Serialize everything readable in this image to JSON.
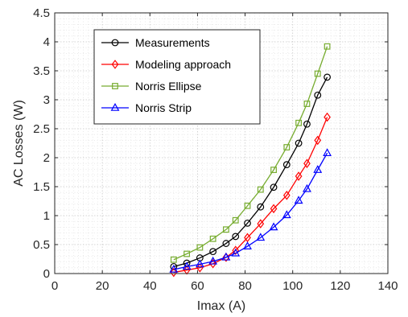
{
  "chart_data": {
    "type": "line",
    "xlabel": "Imax (A)",
    "ylabel": "AC Losses (W)",
    "xlim": [
      0,
      140
    ],
    "ylim": [
      0,
      4.5
    ],
    "xticks": [
      "0",
      "20",
      "40",
      "60",
      "80",
      "100",
      "120",
      "140"
    ],
    "yticks": [
      "0",
      "0.5",
      "1",
      "1.5",
      "2",
      "2.5",
      "3",
      "3.5",
      "4",
      "4.5"
    ],
    "grid": "major and minor, dotted",
    "legend_position": "upper-left",
    "x": [
      50,
      55.5,
      61,
      66.5,
      72,
      76,
      81,
      86.5,
      92,
      97.5,
      102.5,
      106,
      110.5,
      114.5
    ],
    "series": [
      {
        "name": "Measurements",
        "color": "#000000",
        "marker": "circle",
        "values": [
          0.12,
          0.18,
          0.27,
          0.38,
          0.52,
          0.64,
          0.87,
          1.15,
          1.49,
          1.88,
          2.25,
          2.58,
          3.08,
          3.39
        ]
      },
      {
        "name": "Modeling approach",
        "color": "#ff0000",
        "marker": "diamond",
        "values": [
          0.02,
          0.06,
          0.1,
          0.17,
          0.28,
          0.4,
          0.62,
          0.86,
          1.12,
          1.35,
          1.68,
          1.9,
          2.3,
          2.7
        ]
      },
      {
        "name": "Norris Ellipse",
        "color": "#77ac30",
        "marker": "square",
        "values": [
          0.24,
          0.34,
          0.45,
          0.6,
          0.76,
          0.92,
          1.17,
          1.45,
          1.79,
          2.18,
          2.6,
          2.93,
          3.45,
          3.92
        ]
      },
      {
        "name": "Norris Strip",
        "color": "#0000ff",
        "marker": "triangle",
        "values": [
          0.07,
          0.12,
          0.16,
          0.21,
          0.28,
          0.35,
          0.47,
          0.62,
          0.8,
          1.01,
          1.26,
          1.46,
          1.79,
          2.08
        ]
      }
    ]
  }
}
